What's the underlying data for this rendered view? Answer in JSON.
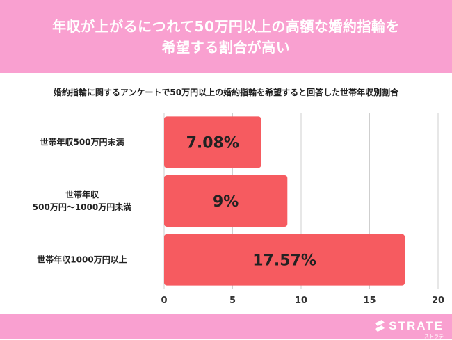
{
  "header": {
    "title_line1": "年収が上がるにつれて50万円以上の高額な婚約指輪を",
    "title_line2": "希望する割合が高い"
  },
  "subtitle": "婚約指輪に関するアンケートで50万円以上の婚約指輪を希望すると回答した世帯年収別割合",
  "colors": {
    "bar": "#f65b60",
    "header_bg": "#f9a0d0",
    "grid": "#cfcfcf"
  },
  "chart_data": {
    "type": "bar",
    "orientation": "horizontal",
    "categories": [
      [
        "世帯年収500万円未満"
      ],
      [
        "世帯年収",
        "500万円〜1000万円未満"
      ],
      [
        "世帯年収1000万円以上"
      ]
    ],
    "values": [
      7.08,
      9,
      17.57
    ],
    "value_labels": [
      "7.08%",
      "9%",
      "17.57%"
    ],
    "x_ticks": [
      "0",
      "5",
      "10",
      "15",
      "20"
    ],
    "xlim": [
      0,
      20
    ],
    "grid": true
  },
  "footer": {
    "logo_text": "STRATE",
    "logo_kana": "ストラテ"
  }
}
